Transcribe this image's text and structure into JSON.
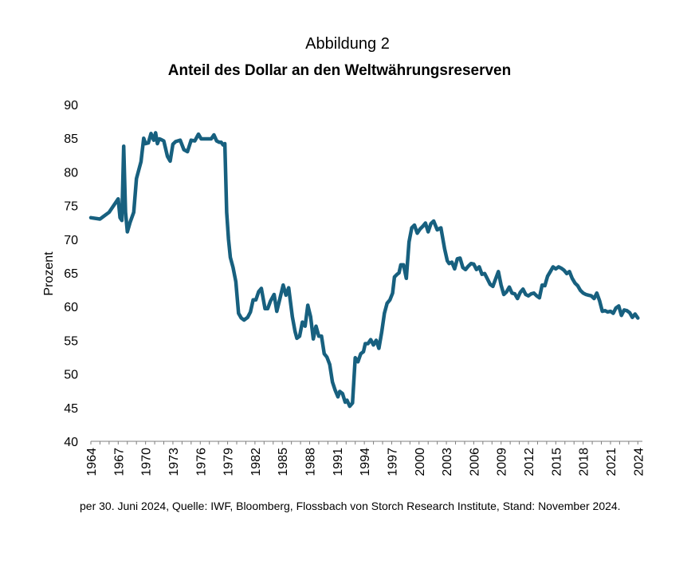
{
  "figure_label": "Abbildung 2",
  "source_note": "per 30. Juni 2024, Quelle: IWF, Bloomberg, Flossbach von Storch Research Institute, Stand: November 2024.",
  "chart_data": {
    "type": "line",
    "title": "Anteil des Dollar an den Weltwährungsreserven",
    "xlabel": "",
    "ylabel": "Prozent",
    "xlim": [
      1964,
      2024.5
    ],
    "ylim": [
      40,
      90
    ],
    "yticks": [
      40,
      45,
      50,
      55,
      60,
      65,
      70,
      75,
      80,
      85,
      90
    ],
    "xticks": [
      "1964",
      "1967",
      "1970",
      "1973",
      "1976",
      "1979",
      "1982",
      "1985",
      "1988",
      "1991",
      "1994",
      "1997",
      "2000",
      "2003",
      "2006",
      "2009",
      "2012",
      "2015",
      "2018",
      "2021",
      "2024"
    ],
    "grid": false,
    "color": "#17607f",
    "series": [
      {
        "x": [
          1964,
          1965,
          1966,
          1967,
          1967.2,
          1967.4,
          1967.6,
          1967.8,
          1968,
          1968.3,
          1968.7,
          1969,
          1969.5,
          1969.8,
          1970,
          1970.3,
          1970.6,
          1970.9,
          1971.1,
          1971.3,
          1971.5,
          1971.7,
          1972,
          1972.4,
          1972.7,
          1973,
          1973.3,
          1973.8,
          1974.2,
          1974.6,
          1975,
          1975.4,
          1975.8,
          1976.1,
          1976.4,
          1976.8,
          1977.2,
          1977.5,
          1977.8,
          1978.1,
          1978.3,
          1978.5,
          1978.7,
          1978.9,
          1979.1,
          1979.3,
          1979.6,
          1979.9,
          1980.2,
          1980.5,
          1980.8,
          1981.2,
          1981.5,
          1981.8,
          1982.1,
          1982.4,
          1982.7,
          1983.1,
          1983.4,
          1983.7,
          1984.1,
          1984.4,
          1984.7,
          1985.1,
          1985.4,
          1985.7,
          1986.1,
          1986.4,
          1986.6,
          1986.9,
          1987.2,
          1987.5,
          1987.8,
          1988.1,
          1988.4,
          1988.7,
          1989,
          1989.3,
          1989.6,
          1989.9,
          1990.2,
          1990.5,
          1990.8,
          1991.1,
          1991.3,
          1991.6,
          1991.9,
          1992.1,
          1992.4,
          1992.7,
          1993,
          1993.3,
          1993.6,
          1993.9,
          1994.1,
          1994.4,
          1994.7,
          1995,
          1995.3,
          1995.6,
          1995.9,
          1996.2,
          1996.5,
          1996.8,
          1997.1,
          1997.3,
          1997.6,
          1997.8,
          1998,
          1998.3,
          1998.6,
          1998.9,
          1999.2,
          1999.5,
          1999.8,
          2000.1,
          2000.4,
          2000.7,
          2001,
          2001.3,
          2001.6,
          2002,
          2002.4,
          2002.8,
          2003.1,
          2003.3,
          2003.6,
          2003.9,
          2004.2,
          2004.5,
          2004.8,
          2005.1,
          2005.4,
          2005.7,
          2006,
          2006.3,
          2006.6,
          2006.9,
          2007.2,
          2007.5,
          2007.8,
          2008.1,
          2008.4,
          2008.7,
          2009,
          2009.3,
          2009.6,
          2009.9,
          2010.2,
          2010.5,
          2010.8,
          2011.1,
          2011.4,
          2011.7,
          2012,
          2012.3,
          2012.6,
          2012.9,
          2013.2,
          2013.5,
          2013.8,
          2014.1,
          2014.4,
          2014.7,
          2015,
          2015.3,
          2015.6,
          2015.9,
          2016.2,
          2016.5,
          2016.8,
          2017.1,
          2017.4,
          2017.7,
          2018,
          2018.3,
          2018.6,
          2018.9,
          2019.2,
          2019.5,
          2019.8,
          2020.1,
          2020.4,
          2020.7,
          2021,
          2021.3,
          2021.6,
          2021.9,
          2022.2,
          2022.5,
          2022.8,
          2023.1,
          2023.4,
          2023.7,
          2024
        ],
        "y": [
          73.2,
          73,
          74,
          76,
          73.2,
          72.8,
          83.8,
          74,
          71.1,
          72.5,
          74,
          79,
          81.5,
          85,
          84.2,
          84.3,
          85.7,
          84.7,
          85.8,
          84.2,
          84.9,
          84.8,
          84.6,
          82.3,
          81.6,
          84.1,
          84.5,
          84.7,
          83.3,
          83,
          84.7,
          84.6,
          85.6,
          84.9,
          84.9,
          84.9,
          84.9,
          85.5,
          84.6,
          84.4,
          84.4,
          84,
          84.2,
          74,
          70,
          67.3,
          65.8,
          63.7,
          59,
          58.3,
          58,
          58.4,
          59.2,
          61,
          61,
          62.2,
          62.7,
          59.7,
          59.7,
          60.8,
          61.8,
          59.3,
          61,
          63.2,
          61.7,
          62.8,
          58.5,
          56.3,
          55.3,
          55.6,
          57.7,
          57.1,
          60.2,
          58.5,
          55.2,
          57.1,
          55.6,
          55.6,
          53,
          52.5,
          51.4,
          48.8,
          47.6,
          46.6,
          47.4,
          47.1,
          45.8,
          46.1,
          45.2,
          45.7,
          52.4,
          51.8,
          53,
          53.3,
          54.5,
          54.5,
          55.1,
          54.3,
          55,
          53.8,
          56.2,
          59,
          60.5,
          61,
          62,
          64.4,
          64.8,
          65,
          66.2,
          66.2,
          64.2,
          69.6,
          71.7,
          72.1,
          70.9,
          71.5,
          71.9,
          72.4,
          71.1,
          72.3,
          72.7,
          71.4,
          71.7,
          68.6,
          66.8,
          66.4,
          66.6,
          65.6,
          67.1,
          67.2,
          65.8,
          65.5,
          66,
          66.4,
          66.3,
          65.5,
          65.9,
          64.8,
          64.9,
          64.1,
          63.3,
          63,
          64.1,
          65.2,
          63.2,
          61.8,
          62.2,
          62.9,
          62,
          61.9,
          61.2,
          62.1,
          62.6,
          61.8,
          61.6,
          61.9,
          62,
          61.6,
          61.3,
          63.2,
          63.1,
          64.5,
          65.2,
          65.9,
          65.6,
          65.9,
          65.7,
          65.4,
          64.9,
          65.2,
          64.2,
          63.5,
          63.1,
          62.4,
          62,
          61.8,
          61.7,
          61.6,
          61.2,
          62,
          60.9,
          59.3,
          59.4,
          59.2,
          59.3,
          59,
          59.8,
          60.1,
          58.7,
          59.5,
          59.4,
          59.1,
          58.4,
          58.9,
          58.3
        ]
      }
    ]
  }
}
